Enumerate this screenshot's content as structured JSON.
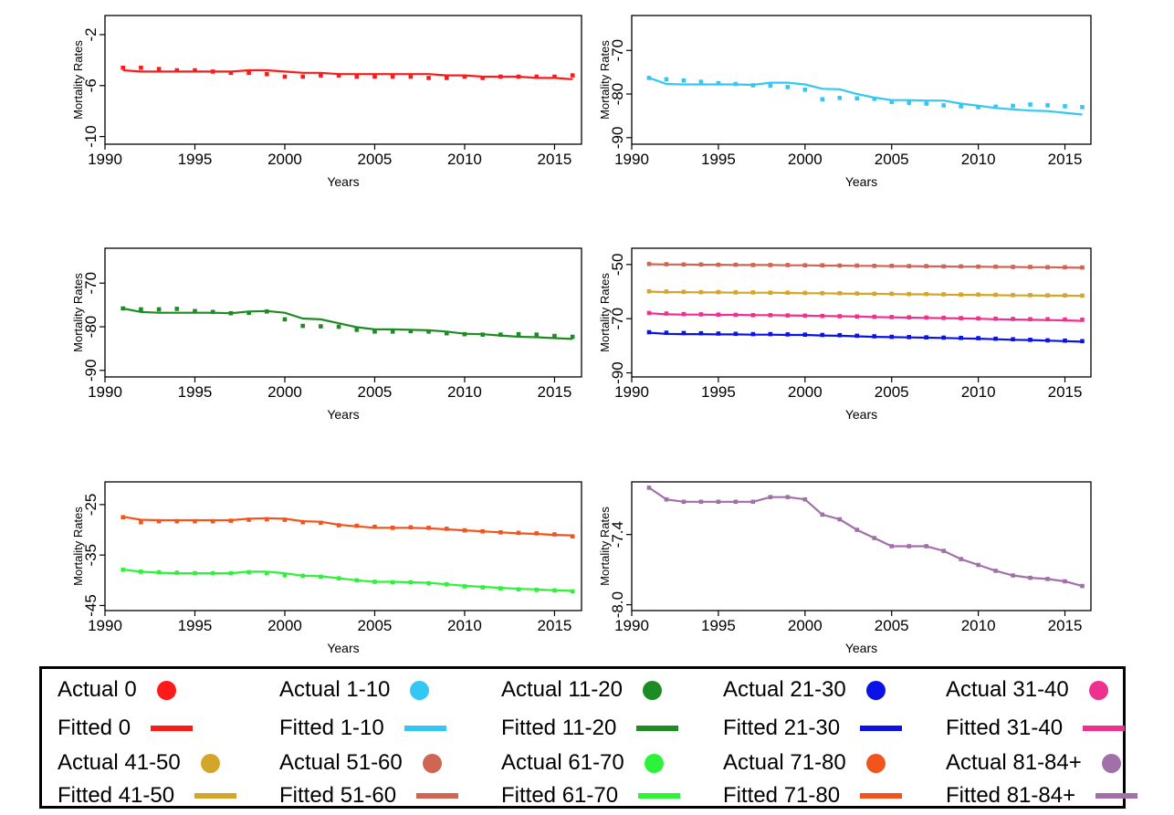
{
  "chart_data": [
    {
      "type": "line",
      "xlabel": "Years",
      "ylabel": "Mortality Rates",
      "xlim": [
        1990,
        2016.5
      ],
      "ylim": [
        -10.6,
        -0.5
      ],
      "xticks": [
        1990,
        1995,
        2000,
        2005,
        2010,
        2015
      ],
      "xtick_labels": [
        "1990",
        "1995",
        "2000",
        "2005",
        "2010",
        "2015"
      ],
      "yticks": [
        -2,
        -6,
        -10
      ],
      "ytick_labels": [
        "-2",
        "-6",
        "-10"
      ],
      "x": [
        1991,
        1992,
        1993,
        1994,
        1995,
        1996,
        1997,
        1998,
        1999,
        2000,
        2001,
        2002,
        2003,
        2004,
        2005,
        2006,
        2007,
        2008,
        2009,
        2010,
        2011,
        2012,
        2013,
        2014,
        2015,
        2016
      ],
      "series": [
        {
          "name": "0",
          "color": "#ff1a1a",
          "actual": [
            -4.6,
            -4.6,
            -4.7,
            -4.8,
            -4.8,
            -4.9,
            -5.0,
            -5.0,
            -5.1,
            -5.3,
            -5.3,
            -5.2,
            -5.2,
            -5.3,
            -5.3,
            -5.3,
            -5.3,
            -5.4,
            -5.4,
            -5.3,
            -5.4,
            -5.3,
            -5.3,
            -5.3,
            -5.3,
            -5.2
          ],
          "fitted": [
            -4.8,
            -4.9,
            -4.9,
            -4.9,
            -4.9,
            -4.9,
            -4.9,
            -4.8,
            -4.8,
            -4.9,
            -5.0,
            -5.0,
            -5.1,
            -5.1,
            -5.1,
            -5.1,
            -5.1,
            -5.1,
            -5.2,
            -5.2,
            -5.3,
            -5.3,
            -5.3,
            -5.4,
            -5.4,
            -5.5
          ]
        }
      ]
    },
    {
      "type": "line",
      "xlabel": "Years",
      "ylabel": "Mortality Rates",
      "xlim": [
        1990,
        2016.5
      ],
      "ylim": [
        -91.5,
        -62
      ],
      "xticks": [
        1990,
        1995,
        2000,
        2005,
        2010,
        2015
      ],
      "xtick_labels": [
        "1990",
        "1995",
        "2000",
        "2005",
        "2010",
        "2015"
      ],
      "yticks": [
        -70,
        -80,
        -90
      ],
      "ytick_labels": [
        "-70",
        "-80",
        "-90"
      ],
      "x": [
        1991,
        1992,
        1993,
        1994,
        1995,
        1996,
        1997,
        1998,
        1999,
        2000,
        2001,
        2002,
        2003,
        2004,
        2005,
        2006,
        2007,
        2008,
        2009,
        2010,
        2011,
        2012,
        2013,
        2014,
        2015,
        2016
      ],
      "series": [
        {
          "name": "1-10",
          "color": "#33c7f5",
          "actual": [
            -76.3,
            -76.6,
            -76.9,
            -77.2,
            -77.5,
            -77.7,
            -78.0,
            -78.1,
            -78.4,
            -79.0,
            -81.2,
            -80.9,
            -81.0,
            -81.1,
            -81.8,
            -82.0,
            -82.2,
            -82.6,
            -82.8,
            -83.0,
            -82.9,
            -82.7,
            -82.4,
            -82.6,
            -82.8,
            -83.0
          ],
          "fitted": [
            -76.3,
            -77.7,
            -77.8,
            -77.8,
            -77.8,
            -77.8,
            -77.9,
            -77.4,
            -77.4,
            -77.8,
            -78.8,
            -78.9,
            -80.0,
            -80.8,
            -81.4,
            -81.4,
            -81.5,
            -81.5,
            -82.2,
            -82.7,
            -83.2,
            -83.5,
            -83.8,
            -83.9,
            -84.3,
            -84.7
          ]
        }
      ]
    },
    {
      "type": "line",
      "xlabel": "Years",
      "ylabel": "Mortality Rates",
      "xlim": [
        1990,
        2016.5
      ],
      "ylim": [
        -91.5,
        -62
      ],
      "xticks": [
        1990,
        1995,
        2000,
        2005,
        2010,
        2015
      ],
      "xtick_labels": [
        "1990",
        "1995",
        "2000",
        "2005",
        "2010",
        "2015"
      ],
      "yticks": [
        -70,
        -80,
        -90
      ],
      "ytick_labels": [
        "-70",
        "-80",
        "-90"
      ],
      "x": [
        1991,
        1992,
        1993,
        1994,
        1995,
        1996,
        1997,
        1998,
        1999,
        2000,
        2001,
        2002,
        2003,
        2004,
        2005,
        2006,
        2007,
        2008,
        2009,
        2010,
        2011,
        2012,
        2013,
        2014,
        2015,
        2016
      ],
      "series": [
        {
          "name": "11-20",
          "color": "#1e8b24",
          "actual": [
            -75.8,
            -76.0,
            -76.0,
            -75.9,
            -76.4,
            -76.6,
            -76.9,
            -76.8,
            -76.5,
            -78.3,
            -79.8,
            -79.9,
            -80.0,
            -80.7,
            -81.1,
            -81.1,
            -81.0,
            -81.1,
            -81.5,
            -81.7,
            -81.8,
            -81.8,
            -81.7,
            -81.8,
            -82.1,
            -82.3
          ],
          "fitted": [
            -75.8,
            -76.6,
            -76.8,
            -76.8,
            -76.8,
            -76.8,
            -76.9,
            -76.5,
            -76.4,
            -76.8,
            -78.1,
            -78.3,
            -79.2,
            -80.1,
            -80.6,
            -80.6,
            -80.7,
            -80.8,
            -81.1,
            -81.6,
            -81.7,
            -82.0,
            -82.3,
            -82.4,
            -82.6,
            -82.8
          ]
        }
      ]
    },
    {
      "type": "line",
      "xlabel": "Years",
      "ylabel": "Mortality Rates",
      "xlim": [
        1990,
        2016.5
      ],
      "ylim": [
        -91.5,
        -44
      ],
      "xticks": [
        1990,
        1995,
        2000,
        2005,
        2010,
        2015
      ],
      "xtick_labels": [
        "1990",
        "1995",
        "2000",
        "2005",
        "2010",
        "2015"
      ],
      "yticks": [
        -50,
        -70,
        -90
      ],
      "ytick_labels": [
        "-50",
        "-70",
        "-90"
      ],
      "x": [
        1991,
        1992,
        1993,
        1994,
        1995,
        1996,
        1997,
        1998,
        1999,
        2000,
        2001,
        2002,
        2003,
        2004,
        2005,
        2006,
        2007,
        2008,
        2009,
        2010,
        2011,
        2012,
        2013,
        2014,
        2015,
        2016
      ],
      "series": [
        {
          "name": "21-30",
          "color": "#0a12e8",
          "actual": [
            -75.0,
            -75.2,
            -75.3,
            -75.4,
            -75.5,
            -75.6,
            -75.7,
            -75.7,
            -75.8,
            -75.9,
            -76.0,
            -76.1,
            -76.3,
            -76.5,
            -76.7,
            -76.8,
            -76.9,
            -77.0,
            -77.1,
            -77.2,
            -77.4,
            -77.6,
            -77.8,
            -78.0,
            -78.1,
            -78.3
          ],
          "fitted": [
            -75.2,
            -75.6,
            -75.7,
            -75.7,
            -75.8,
            -75.8,
            -75.9,
            -75.9,
            -76.0,
            -76.0,
            -76.2,
            -76.3,
            -76.5,
            -76.7,
            -76.8,
            -76.9,
            -77.0,
            -77.1,
            -77.3,
            -77.4,
            -77.6,
            -77.8,
            -77.9,
            -78.1,
            -78.3,
            -78.5
          ]
        },
        {
          "name": "31-40",
          "color": "#f0308f",
          "actual": [
            -67.9,
            -68.1,
            -68.3,
            -68.4,
            -68.5,
            -68.6,
            -68.7,
            -68.7,
            -68.8,
            -68.9,
            -69.0,
            -69.1,
            -69.2,
            -69.3,
            -69.4,
            -69.5,
            -69.6,
            -69.7,
            -69.8,
            -69.9,
            -70.0,
            -70.1,
            -70.2,
            -70.2,
            -70.3,
            -70.4
          ],
          "fitted": [
            -68.0,
            -68.4,
            -68.5,
            -68.5,
            -68.6,
            -68.6,
            -68.7,
            -68.7,
            -68.8,
            -68.9,
            -69.0,
            -69.1,
            -69.2,
            -69.4,
            -69.5,
            -69.6,
            -69.7,
            -69.8,
            -69.9,
            -70.0,
            -70.2,
            -70.3,
            -70.4,
            -70.5,
            -70.6,
            -70.8
          ]
        },
        {
          "name": "41-50",
          "color": "#d4a52a",
          "actual": [
            -59.9,
            -60.0,
            -60.1,
            -60.2,
            -60.2,
            -60.3,
            -60.3,
            -60.4,
            -60.4,
            -60.5,
            -60.6,
            -60.6,
            -60.7,
            -60.8,
            -60.8,
            -60.9,
            -60.9,
            -61.0,
            -61.1,
            -61.1,
            -61.2,
            -61.3,
            -61.3,
            -61.4,
            -61.4,
            -61.5
          ],
          "fitted": [
            -60.0,
            -60.2,
            -60.2,
            -60.3,
            -60.3,
            -60.4,
            -60.4,
            -60.4,
            -60.5,
            -60.6,
            -60.6,
            -60.7,
            -60.8,
            -60.8,
            -60.9,
            -61.0,
            -61.0,
            -61.1,
            -61.2,
            -61.2,
            -61.3,
            -61.4,
            -61.4,
            -61.5,
            -61.5,
            -61.6
          ]
        },
        {
          "name": "51-60",
          "color": "#cf6553",
          "actual": [
            -49.8,
            -49.9,
            -50.0,
            -50.0,
            -50.1,
            -50.1,
            -50.2,
            -50.2,
            -50.2,
            -50.3,
            -50.3,
            -50.4,
            -50.4,
            -50.5,
            -50.5,
            -50.6,
            -50.6,
            -50.7,
            -50.7,
            -50.8,
            -50.8,
            -50.9,
            -50.9,
            -51.0,
            -51.0,
            -51.1
          ],
          "fitted": [
            -49.9,
            -50.0,
            -50.0,
            -50.1,
            -50.1,
            -50.2,
            -50.2,
            -50.2,
            -50.3,
            -50.3,
            -50.4,
            -50.4,
            -50.5,
            -50.5,
            -50.6,
            -50.6,
            -50.7,
            -50.7,
            -50.8,
            -50.8,
            -50.9,
            -50.9,
            -51.0,
            -51.0,
            -51.1,
            -51.2
          ]
        }
      ]
    },
    {
      "type": "line",
      "xlabel": "Years",
      "ylabel": "Mortality Rates",
      "xlim": [
        1990,
        2016.5
      ],
      "ylim": [
        -46,
        -20.5
      ],
      "xticks": [
        1990,
        1995,
        2000,
        2005,
        2010,
        2015
      ],
      "xtick_labels": [
        "1990",
        "1995",
        "2000",
        "2005",
        "2010",
        "2015"
      ],
      "yticks": [
        -25,
        -35,
        -45
      ],
      "ytick_labels": [
        "-25",
        "-35",
        "-45"
      ],
      "x": [
        1991,
        1992,
        1993,
        1994,
        1995,
        1996,
        1997,
        1998,
        1999,
        2000,
        2001,
        2002,
        2003,
        2004,
        2005,
        2006,
        2007,
        2008,
        2009,
        2010,
        2011,
        2012,
        2013,
        2014,
        2015,
        2016
      ],
      "series": [
        {
          "name": "71-80",
          "color": "#f2541b",
          "actual": [
            -27.5,
            -28.5,
            -28.3,
            -28.3,
            -28.3,
            -28.3,
            -28.2,
            -28.0,
            -27.9,
            -28.0,
            -28.5,
            -28.6,
            -29.1,
            -29.2,
            -29.4,
            -29.6,
            -29.5,
            -29.6,
            -29.8,
            -30.1,
            -30.3,
            -30.5,
            -30.6,
            -30.7,
            -30.9,
            -31.3
          ],
          "fitted": [
            -27.4,
            -28.0,
            -28.1,
            -28.1,
            -28.1,
            -28.1,
            -28.1,
            -27.8,
            -27.7,
            -27.8,
            -28.3,
            -28.4,
            -29.0,
            -29.3,
            -29.6,
            -29.6,
            -29.6,
            -29.7,
            -29.9,
            -30.1,
            -30.3,
            -30.5,
            -30.7,
            -30.8,
            -31.0,
            -31.1
          ]
        },
        {
          "name": "61-70",
          "color": "#2ef23a",
          "actual": [
            -37.9,
            -38.3,
            -38.4,
            -38.5,
            -38.6,
            -38.6,
            -38.6,
            -38.4,
            -38.6,
            -39.0,
            -39.1,
            -39.3,
            -39.6,
            -40.0,
            -40.3,
            -40.4,
            -40.4,
            -40.6,
            -40.8,
            -41.2,
            -41.4,
            -41.6,
            -41.8,
            -41.9,
            -42.0,
            -42.2
          ],
          "fitted": [
            -37.9,
            -38.3,
            -38.5,
            -38.6,
            -38.6,
            -38.6,
            -38.6,
            -38.3,
            -38.3,
            -38.6,
            -39.1,
            -39.2,
            -39.6,
            -40.0,
            -40.3,
            -40.3,
            -40.4,
            -40.5,
            -40.8,
            -41.1,
            -41.3,
            -41.5,
            -41.7,
            -41.8,
            -42.0,
            -42.1
          ]
        }
      ]
    },
    {
      "type": "line",
      "xlabel": "Years",
      "ylabel": "Mortality Rates",
      "xlim": [
        1990,
        2016.5
      ],
      "ylim": [
        -8.05,
        -6.95
      ],
      "xticks": [
        1990,
        1995,
        2000,
        2005,
        2010,
        2015
      ],
      "xtick_labels": [
        "1990",
        "1995",
        "2000",
        "2005",
        "2010",
        "2015"
      ],
      "yticks": [
        -7.4,
        -8.0
      ],
      "ytick_labels": [
        "-7.4",
        "-8.0"
      ],
      "x": [
        1991,
        1992,
        1993,
        1994,
        1995,
        1996,
        1997,
        1998,
        1999,
        2000,
        2001,
        2002,
        2003,
        2004,
        2005,
        2006,
        2007,
        2008,
        2009,
        2010,
        2011,
        2012,
        2013,
        2014,
        2015,
        2016
      ],
      "series": [
        {
          "name": "81-84+",
          "color": "#a170a8",
          "actual": [
            -7.0,
            -7.1,
            -7.12,
            -7.12,
            -7.12,
            -7.12,
            -7.12,
            -7.08,
            -7.08,
            -7.1,
            -7.23,
            -7.27,
            -7.36,
            -7.43,
            -7.5,
            -7.5,
            -7.5,
            -7.54,
            -7.61,
            -7.66,
            -7.71,
            -7.75,
            -7.77,
            -7.78,
            -7.8,
            -7.84
          ],
          "fitted": [
            -7.0,
            -7.1,
            -7.12,
            -7.12,
            -7.12,
            -7.12,
            -7.12,
            -7.08,
            -7.08,
            -7.1,
            -7.23,
            -7.27,
            -7.36,
            -7.43,
            -7.5,
            -7.5,
            -7.5,
            -7.54,
            -7.61,
            -7.66,
            -7.71,
            -7.75,
            -7.77,
            -7.78,
            -7.8,
            -7.84
          ]
        }
      ]
    }
  ],
  "legend": {
    "items": [
      {
        "label": "Actual 0",
        "kind": "dot",
        "color": "#ff1a1a"
      },
      {
        "label": "Actual 1-10",
        "kind": "dot",
        "color": "#33c7f5"
      },
      {
        "label": "Actual 11-20",
        "kind": "dot",
        "color": "#1e8b24"
      },
      {
        "label": "Actual 21-30",
        "kind": "dot",
        "color": "#0a12e8"
      },
      {
        "label": "Actual 31-40",
        "kind": "dot",
        "color": "#f0308f"
      },
      {
        "label": "Fitted 0",
        "kind": "line",
        "color": "#ff1a1a"
      },
      {
        "label": "Fitted 1-10",
        "kind": "line",
        "color": "#33c7f5"
      },
      {
        "label": "Fitted 11-20",
        "kind": "line",
        "color": "#1e8b24"
      },
      {
        "label": "Fitted 21-30",
        "kind": "line",
        "color": "#0a12e8"
      },
      {
        "label": "Fitted 31-40",
        "kind": "line",
        "color": "#f0308f"
      },
      {
        "label": "Actual 41-50",
        "kind": "dot",
        "color": "#d4a52a"
      },
      {
        "label": "Actual 51-60",
        "kind": "dot",
        "color": "#cf6553"
      },
      {
        "label": "Actual 61-70",
        "kind": "dot",
        "color": "#2ef23a"
      },
      {
        "label": "Actual 71-80",
        "kind": "dot",
        "color": "#f2541b"
      },
      {
        "label": "Actual 81-84+",
        "kind": "dot",
        "color": "#a170a8"
      },
      {
        "label": "Fitted 41-50",
        "kind": "line",
        "color": "#d4a52a"
      },
      {
        "label": "Fitted 51-60",
        "kind": "line",
        "color": "#cf6553"
      },
      {
        "label": "Fitted 61-70",
        "kind": "line",
        "color": "#2ef23a"
      },
      {
        "label": "Fitted 71-80",
        "kind": "line",
        "color": "#f2541b"
      },
      {
        "label": "Fitted 81-84+",
        "kind": "line",
        "color": "#a170a8"
      }
    ]
  }
}
